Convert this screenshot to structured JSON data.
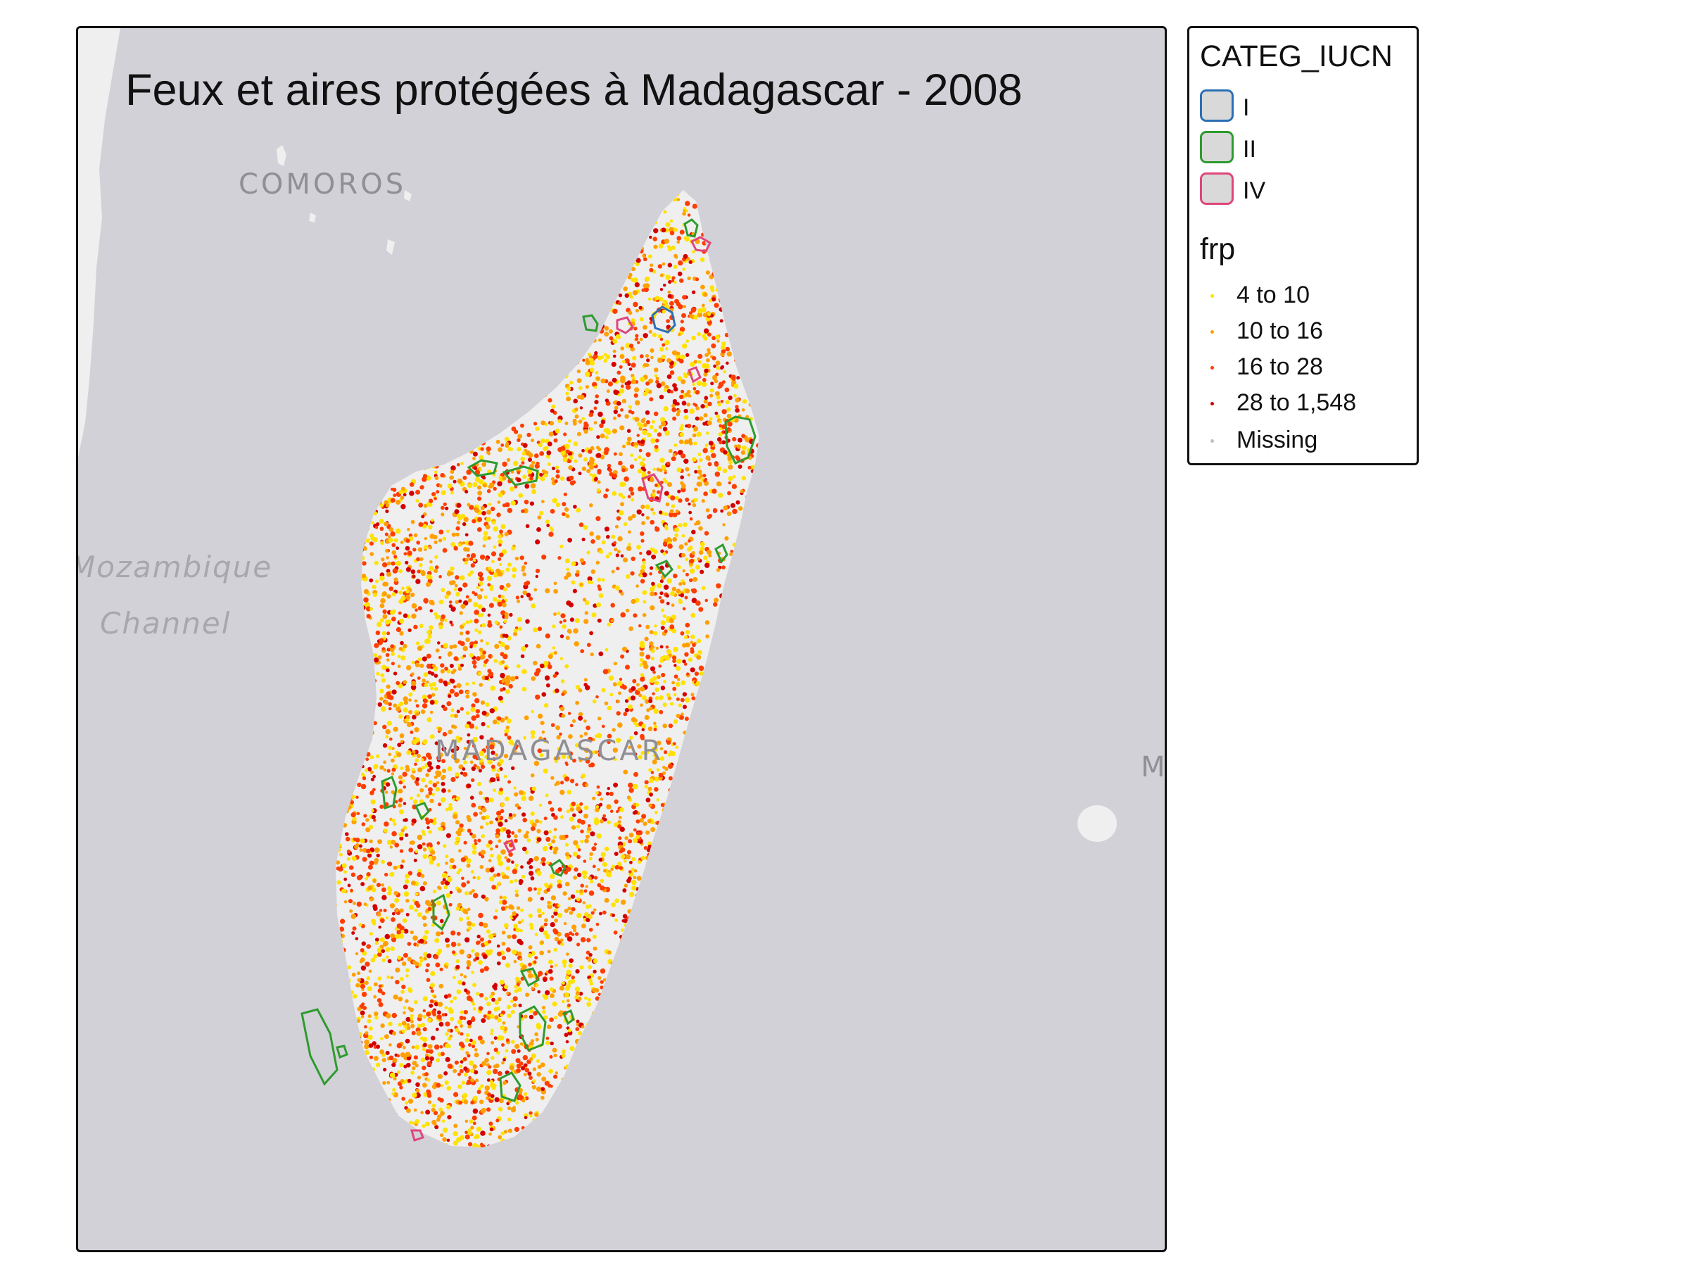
{
  "map": {
    "title": "Feux et aires protégées à Madagascar - 2008",
    "basemap_labels": {
      "comoros": "COMOROS",
      "mozambique_1": "Mozambique",
      "mozambique_2": "Channel",
      "madagascar": "MADAGASCAR",
      "mauritius_fragment": "M"
    },
    "colors": {
      "ocean": "#d2d1d7",
      "land": "#efeff0",
      "fire_low": "#ffe200",
      "fire_mid": "#ffa000",
      "fire_high": "#ff3d00",
      "fire_top": "#d40000",
      "iucn_I": "#2b6fb5",
      "iucn_II": "#2e9b2e",
      "iucn_IV": "#e0457b"
    }
  },
  "legend": {
    "polygon_title": "CATEG_IUCN",
    "categories": [
      {
        "label": "I",
        "color": "#2b6fb5"
      },
      {
        "label": "II",
        "color": "#2e9b2e"
      },
      {
        "label": "IV",
        "color": "#e0457b"
      }
    ],
    "points_title": "frp",
    "classes": [
      {
        "label": "4 to 10",
        "color": "#ffe200"
      },
      {
        "label": "10 to 16",
        "color": "#ffa000"
      },
      {
        "label": "16 to 28",
        "color": "#ff3d00"
      },
      {
        "label": "28 to 1,548",
        "color": "#d40000"
      },
      {
        "label": "Missing",
        "color": "#bfbfbf"
      }
    ]
  }
}
